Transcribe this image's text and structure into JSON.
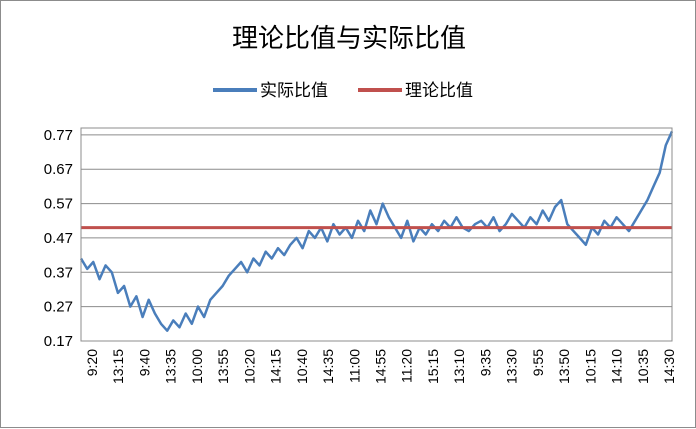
{
  "chart_data": {
    "type": "line",
    "title": "理论比值与实际比值",
    "legend_position": "top",
    "grid": "horizontal",
    "ylim": [
      0.17,
      0.79
    ],
    "yticks": [
      "0.77",
      "0.67",
      "0.57",
      "0.47",
      "0.37",
      "0.27",
      "0.17"
    ],
    "x_tick_labels": [
      "9:20",
      "13:15",
      "9:40",
      "13:35",
      "10:00",
      "13:55",
      "10:20",
      "14:15",
      "10:40",
      "14:35",
      "11:00",
      "14:55",
      "11:20",
      "15:15",
      "13:10",
      "9:35",
      "13:30",
      "9:55",
      "13:50",
      "10:15",
      "14:10",
      "10:35",
      "14:30"
    ],
    "series": [
      {
        "name": "实际比值",
        "color": "#4a7ebb",
        "values": [
          0.41,
          0.38,
          0.4,
          0.35,
          0.39,
          0.37,
          0.31,
          0.33,
          0.27,
          0.3,
          0.24,
          0.29,
          0.25,
          0.22,
          0.2,
          0.23,
          0.21,
          0.25,
          0.22,
          0.27,
          0.24,
          0.29,
          0.31,
          0.33,
          0.36,
          0.38,
          0.4,
          0.37,
          0.41,
          0.39,
          0.43,
          0.41,
          0.44,
          0.42,
          0.45,
          0.47,
          0.44,
          0.49,
          0.47,
          0.5,
          0.46,
          0.51,
          0.48,
          0.5,
          0.47,
          0.52,
          0.49,
          0.55,
          0.51,
          0.57,
          0.53,
          0.5,
          0.47,
          0.52,
          0.46,
          0.5,
          0.48,
          0.51,
          0.49,
          0.52,
          0.5,
          0.53,
          0.5,
          0.49,
          0.51,
          0.52,
          0.5,
          0.53,
          0.49,
          0.51,
          0.54,
          0.52,
          0.5,
          0.53,
          0.51,
          0.55,
          0.52,
          0.56,
          0.58,
          0.51,
          0.49,
          0.47,
          0.45,
          0.5,
          0.48,
          0.52,
          0.5,
          0.53,
          0.51,
          0.49,
          0.52,
          0.55,
          0.58,
          0.62,
          0.66,
          0.74,
          0.78
        ]
      },
      {
        "name": "理论比值",
        "color": "#c0504d",
        "values": [
          0.5,
          0.5
        ]
      }
    ]
  }
}
